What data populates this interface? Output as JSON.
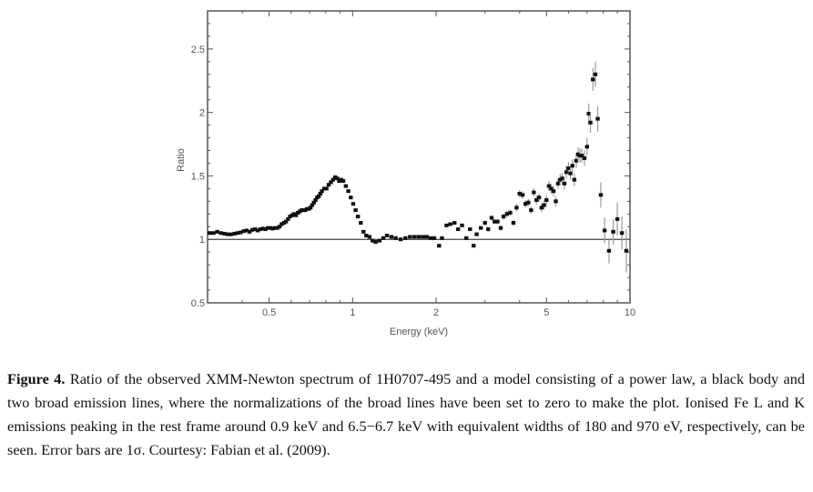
{
  "chart_data": {
    "type": "scatter",
    "title": "",
    "xlabel": "Energy (keV)",
    "ylabel": "Ratio",
    "xscale": "log",
    "xlim": [
      0.3,
      10
    ],
    "ylim": [
      0.5,
      2.8
    ],
    "x_ticks": [
      0.5,
      1,
      2,
      5,
      10
    ],
    "x_tick_labels": [
      "0.5",
      "1",
      "2",
      "5",
      "10"
    ],
    "x_minor_ticks": [
      0.4,
      0.6,
      0.7,
      0.8,
      0.9,
      3,
      4,
      6,
      7,
      8,
      9
    ],
    "y_ticks": [
      0.5,
      1,
      1.5,
      2,
      2.5
    ],
    "y_tick_labels": [
      "0.5",
      "1",
      "1.5",
      "2",
      "2.5"
    ],
    "reference_line": 1.0,
    "grid": false,
    "series": [
      {
        "name": "data/model ratio",
        "points": [
          [
            0.305,
            1.05,
            0.005
          ],
          [
            0.315,
            1.05,
            0.005
          ],
          [
            0.325,
            1.06,
            0.005
          ],
          [
            0.335,
            1.05,
            0.005
          ],
          [
            0.345,
            1.045,
            0.005
          ],
          [
            0.355,
            1.04,
            0.005
          ],
          [
            0.365,
            1.04,
            0.005
          ],
          [
            0.375,
            1.045,
            0.005
          ],
          [
            0.385,
            1.05,
            0.005
          ],
          [
            0.395,
            1.055,
            0.005
          ],
          [
            0.405,
            1.065,
            0.005
          ],
          [
            0.415,
            1.07,
            0.005
          ],
          [
            0.425,
            1.06,
            0.005
          ],
          [
            0.435,
            1.075,
            0.005
          ],
          [
            0.445,
            1.08,
            0.005
          ],
          [
            0.455,
            1.07,
            0.005
          ],
          [
            0.465,
            1.08,
            0.005
          ],
          [
            0.475,
            1.085,
            0.005
          ],
          [
            0.485,
            1.08,
            0.005
          ],
          [
            0.495,
            1.09,
            0.005
          ],
          [
            0.505,
            1.09,
            0.005
          ],
          [
            0.515,
            1.085,
            0.005
          ],
          [
            0.525,
            1.09,
            0.005
          ],
          [
            0.535,
            1.09,
            0.005
          ],
          [
            0.545,
            1.1,
            0.005
          ],
          [
            0.555,
            1.12,
            0.005
          ],
          [
            0.565,
            1.13,
            0.005
          ],
          [
            0.575,
            1.14,
            0.005
          ],
          [
            0.585,
            1.16,
            0.005
          ],
          [
            0.595,
            1.18,
            0.005
          ],
          [
            0.605,
            1.19,
            0.005
          ],
          [
            0.615,
            1.2,
            0.005
          ],
          [
            0.625,
            1.19,
            0.005
          ],
          [
            0.635,
            1.21,
            0.005
          ],
          [
            0.645,
            1.22,
            0.005
          ],
          [
            0.655,
            1.23,
            0.005
          ],
          [
            0.665,
            1.23,
            0.005
          ],
          [
            0.675,
            1.23,
            0.005
          ],
          [
            0.685,
            1.24,
            0.005
          ],
          [
            0.695,
            1.24,
            0.005
          ],
          [
            0.705,
            1.25,
            0.005
          ],
          [
            0.715,
            1.27,
            0.005
          ],
          [
            0.725,
            1.29,
            0.005
          ],
          [
            0.735,
            1.31,
            0.005
          ],
          [
            0.745,
            1.33,
            0.005
          ],
          [
            0.755,
            1.34,
            0.005
          ],
          [
            0.765,
            1.36,
            0.005
          ],
          [
            0.775,
            1.38,
            0.005
          ],
          [
            0.79,
            1.4,
            0.005
          ],
          [
            0.805,
            1.4,
            0.005
          ],
          [
            0.82,
            1.43,
            0.005
          ],
          [
            0.835,
            1.45,
            0.005
          ],
          [
            0.85,
            1.47,
            0.005
          ],
          [
            0.865,
            1.49,
            0.005
          ],
          [
            0.88,
            1.48,
            0.005
          ],
          [
            0.895,
            1.46,
            0.005
          ],
          [
            0.91,
            1.47,
            0.005
          ],
          [
            0.925,
            1.46,
            0.005
          ],
          [
            0.945,
            1.42,
            0.005
          ],
          [
            0.965,
            1.38,
            0.005
          ],
          [
            0.985,
            1.33,
            0.005
          ],
          [
            1.005,
            1.28,
            0.005
          ],
          [
            1.025,
            1.23,
            0.005
          ],
          [
            1.045,
            1.18,
            0.005
          ],
          [
            1.07,
            1.13,
            0.005
          ],
          [
            1.095,
            1.06,
            0.005
          ],
          [
            1.12,
            1.03,
            0.005
          ],
          [
            1.15,
            1.02,
            0.005
          ],
          [
            1.18,
            0.99,
            0.005
          ],
          [
            1.21,
            0.98,
            0.005
          ],
          [
            1.25,
            0.99,
            0.005
          ],
          [
            1.29,
            1.01,
            0.005
          ],
          [
            1.33,
            1.03,
            0.005
          ],
          [
            1.38,
            1.02,
            0.005
          ],
          [
            1.43,
            1.01,
            0.005
          ],
          [
            1.49,
            1.0,
            0.005
          ],
          [
            1.55,
            1.01,
            0.005
          ],
          [
            1.61,
            1.02,
            0.005
          ],
          [
            1.67,
            1.02,
            0.005
          ],
          [
            1.73,
            1.02,
            0.005
          ],
          [
            1.79,
            1.02,
            0.005
          ],
          [
            1.85,
            1.02,
            0.005
          ],
          [
            1.91,
            1.01,
            0.005
          ],
          [
            1.97,
            1.01,
            0.005
          ],
          [
            2.05,
            0.95,
            0.008
          ],
          [
            2.1,
            1.01,
            0.008
          ],
          [
            2.18,
            1.11,
            0.01
          ],
          [
            2.25,
            1.12,
            0.01
          ],
          [
            2.33,
            1.13,
            0.01
          ],
          [
            2.4,
            1.08,
            0.012
          ],
          [
            2.48,
            1.11,
            0.012
          ],
          [
            2.57,
            1.01,
            0.015
          ],
          [
            2.65,
            1.08,
            0.015
          ],
          [
            2.73,
            0.95,
            0.015
          ],
          [
            2.8,
            1.04,
            0.015
          ],
          [
            2.9,
            1.09,
            0.015
          ],
          [
            3.0,
            1.13,
            0.02
          ],
          [
            3.08,
            1.08,
            0.02
          ],
          [
            3.17,
            1.17,
            0.02
          ],
          [
            3.25,
            1.14,
            0.02
          ],
          [
            3.33,
            1.14,
            0.02
          ],
          [
            3.42,
            1.09,
            0.02
          ],
          [
            3.5,
            1.18,
            0.025
          ],
          [
            3.6,
            1.2,
            0.025
          ],
          [
            3.7,
            1.21,
            0.025
          ],
          [
            3.8,
            1.13,
            0.025
          ],
          [
            3.9,
            1.25,
            0.03
          ],
          [
            4.0,
            1.36,
            0.03
          ],
          [
            4.1,
            1.35,
            0.03
          ],
          [
            4.2,
            1.28,
            0.03
          ],
          [
            4.3,
            1.29,
            0.03
          ],
          [
            4.4,
            1.23,
            0.03
          ],
          [
            4.5,
            1.37,
            0.035
          ],
          [
            4.6,
            1.31,
            0.035
          ],
          [
            4.7,
            1.33,
            0.035
          ],
          [
            4.8,
            1.25,
            0.035
          ],
          [
            4.9,
            1.27,
            0.035
          ],
          [
            5.0,
            1.31,
            0.04
          ],
          [
            5.1,
            1.42,
            0.04
          ],
          [
            5.2,
            1.4,
            0.04
          ],
          [
            5.3,
            1.38,
            0.04
          ],
          [
            5.4,
            1.3,
            0.04
          ],
          [
            5.5,
            1.44,
            0.04
          ],
          [
            5.6,
            1.47,
            0.045
          ],
          [
            5.7,
            1.48,
            0.045
          ],
          [
            5.8,
            1.44,
            0.045
          ],
          [
            5.9,
            1.53,
            0.05
          ],
          [
            6.0,
            1.56,
            0.05
          ],
          [
            6.1,
            1.52,
            0.05
          ],
          [
            6.2,
            1.58,
            0.05
          ],
          [
            6.3,
            1.47,
            0.05
          ],
          [
            6.4,
            1.62,
            0.055
          ],
          [
            6.5,
            1.67,
            0.055
          ],
          [
            6.6,
            1.66,
            0.055
          ],
          [
            6.7,
            1.66,
            0.055
          ],
          [
            6.85,
            1.64,
            0.06
          ],
          [
            7.0,
            1.73,
            0.07
          ],
          [
            7.1,
            1.99,
            0.08
          ],
          [
            7.2,
            1.92,
            0.08
          ],
          [
            7.35,
            2.26,
            0.09
          ],
          [
            7.5,
            2.3,
            0.1
          ],
          [
            7.65,
            1.95,
            0.1
          ],
          [
            7.85,
            1.35,
            0.1
          ],
          [
            8.1,
            1.07,
            0.1
          ],
          [
            8.4,
            0.91,
            0.1
          ],
          [
            8.7,
            1.06,
            0.1
          ],
          [
            9.0,
            1.16,
            0.13
          ],
          [
            9.35,
            1.05,
            0.13
          ],
          [
            9.7,
            0.91,
            0.17
          ]
        ]
      }
    ]
  },
  "caption": {
    "label": "Figure 4.",
    "text": " Ratio of the observed XMM-Newton spectrum of 1H0707-495 and a model consisting of a power law, a black body and two broad emission lines, where the normalizations of the broad lines have been set to zero to make the plot. Ionised Fe L and K emissions peaking in the rest frame around 0.9 keV and 6.5−6.7 keV with equivalent widths of 180 and 970 eV, respectively, can be seen. Error bars are 1σ. Courtesy: Fabian et al. (2009)."
  }
}
